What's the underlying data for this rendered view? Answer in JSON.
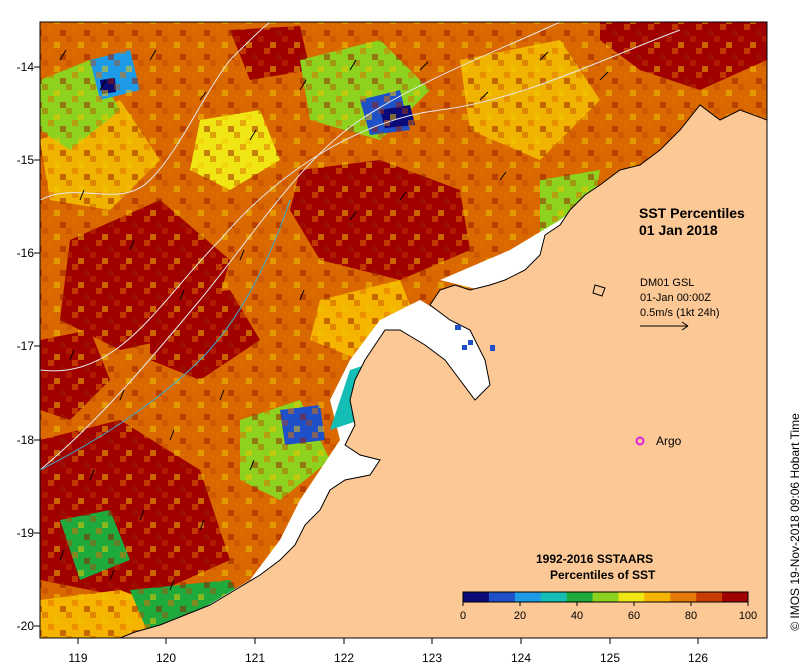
{
  "map": {
    "title_line1": "SST Percentiles",
    "title_line2": "01 Jan 2018",
    "current_label_1": "DM01 GSL",
    "current_label_2": "01-Jan 00:00Z",
    "current_label_3": "0.5m/s (1kt 24h)",
    "argo_label": "Argo",
    "colorbar_title_1": "1992-2016 SSTAARS",
    "colorbar_title_2": "Percentiles of SST",
    "credit": "© IMOS 19-Nov-2018 09:06 Hobart Time",
    "latitudes": [
      "-14",
      "-15",
      "-16",
      "-17",
      "-18",
      "-19",
      "-20"
    ],
    "longitudes": [
      "119",
      "120",
      "121",
      "122",
      "123",
      "124",
      "125",
      "126"
    ],
    "colorbar_ticks": [
      "0",
      "20",
      "40",
      "60",
      "80",
      "100"
    ],
    "colorbar_colors": [
      "#0a0a78",
      "#1e50c8",
      "#1e9be6",
      "#14beb4",
      "#1eaa3c",
      "#8cd21e",
      "#f0e614",
      "#f5b400",
      "#e6780a",
      "#c83c00",
      "#a00000"
    ],
    "land_color": "#fcc896",
    "argo_color": "#e020e0"
  }
}
